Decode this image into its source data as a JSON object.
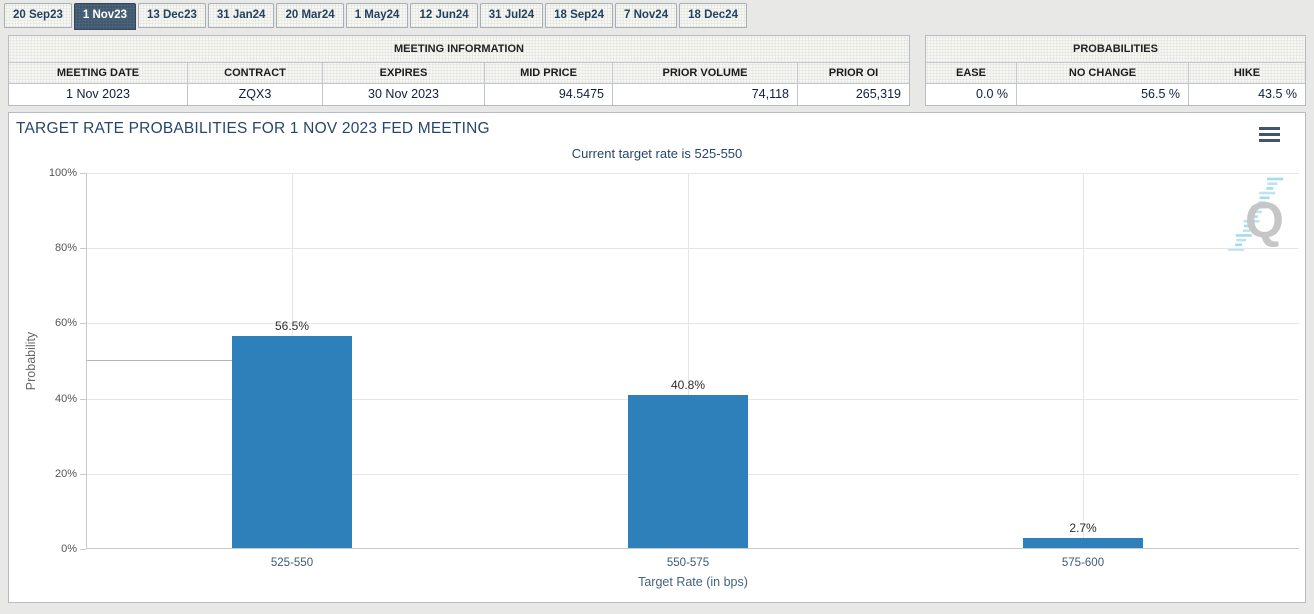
{
  "tabs": {
    "items": [
      {
        "label": "20 Sep23",
        "active": false
      },
      {
        "label": "1 Nov23",
        "active": true
      },
      {
        "label": "13 Dec23",
        "active": false
      },
      {
        "label": "31 Jan24",
        "active": false
      },
      {
        "label": "20 Mar24",
        "active": false
      },
      {
        "label": "1 May24",
        "active": false
      },
      {
        "label": "12 Jun24",
        "active": false
      },
      {
        "label": "31 Jul24",
        "active": false
      },
      {
        "label": "18 Sep24",
        "active": false
      },
      {
        "label": "7 Nov24",
        "active": false
      },
      {
        "label": "18 Dec24",
        "active": false
      }
    ]
  },
  "meeting_information": {
    "title": "MEETING INFORMATION",
    "columns": [
      "MEETING DATE",
      "CONTRACT",
      "EXPIRES",
      "MID PRICE",
      "PRIOR VOLUME",
      "PRIOR OI"
    ],
    "values": [
      "1 Nov 2023",
      "ZQX3",
      "30 Nov 2023",
      "94.5475",
      "74,118",
      "265,319"
    ],
    "align": [
      "center",
      "center",
      "center",
      "right",
      "right",
      "right"
    ]
  },
  "probabilities": {
    "title": "PROBABILITIES",
    "columns": [
      "EASE",
      "NO CHANGE",
      "HIKE"
    ],
    "values": [
      "0.0 %",
      "56.5 %",
      "43.5 %"
    ],
    "align": [
      "right",
      "right",
      "right"
    ]
  },
  "chart": {
    "title": "TARGET RATE PROBABILITIES FOR 1 NOV 2023 FED MEETING",
    "subtitle": "Current target rate is 525-550",
    "menu_icon": "hamburger-menu-icon",
    "watermark_letter": "Q"
  },
  "chart_data": {
    "type": "bar",
    "title": "TARGET RATE PROBABILITIES FOR 1 NOV 2023 FED MEETING",
    "subtitle": "Current target rate is 525-550",
    "categories": [
      "525-550",
      "550-575",
      "575-600"
    ],
    "values": [
      56.5,
      40.8,
      2.7
    ],
    "data_labels": [
      "56.5%",
      "40.8%",
      "2.7%"
    ],
    "xlabel": "Target Rate (in bps)",
    "ylabel": "Probability",
    "ylim": [
      0,
      100
    ],
    "ytick_labels": [
      "0%",
      "20%",
      "40%",
      "60%",
      "80%",
      "100%"
    ],
    "grid": true,
    "legend": "none",
    "bar_color": "#2d80b9",
    "unlabeled_marker_line_pct": 50.3
  },
  "colors": {
    "active_tab": "#41586e",
    "bar": "#2d80b9",
    "heading_text": "#27476a",
    "watermark_gray": "#c6c6c6",
    "watermark_blue": "#a5dcec"
  }
}
